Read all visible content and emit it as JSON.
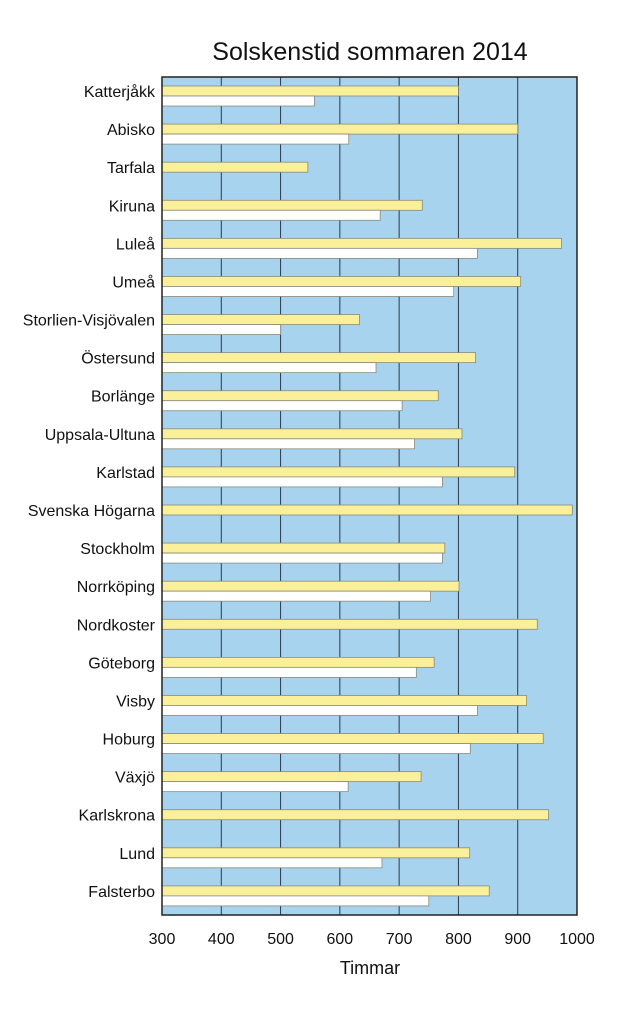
{
  "chart_data": {
    "type": "bar",
    "orientation": "horizontal",
    "title": "Solskenstid sommaren 2014",
    "xlabel": "Timmar",
    "ylabel": "",
    "xlim": [
      300,
      1000
    ],
    "xticks": [
      300,
      400,
      500,
      600,
      700,
      800,
      900,
      1000
    ],
    "grid": true,
    "legend": "none",
    "categories": [
      "Katterjåkk",
      "Abisko",
      "Tarfala",
      "Kiruna",
      "Luleå",
      "Umeå",
      "Storlien-Visjövalen",
      "Östersund",
      "Borlänge",
      "Uppsala-Ultuna",
      "Karlstad",
      "Svenska Högarna",
      "Stockholm",
      "Norrköping",
      "Nordkoster",
      "Göteborg",
      "Visby",
      "Hoburg",
      "Växjö",
      "Karlskrona",
      "Lund",
      "Falsterbo"
    ],
    "series": [
      {
        "color": "#fbf09a",
        "values": [
          800,
          900,
          546,
          739,
          974,
          905,
          633,
          829,
          766,
          806,
          895,
          992,
          777,
          801,
          933,
          759,
          915,
          943,
          737,
          952,
          819,
          852
        ]
      },
      {
        "color": "#ffffff",
        "values": [
          557,
          615,
          null,
          668,
          832,
          792,
          500,
          661,
          705,
          726,
          773,
          null,
          773,
          753,
          null,
          729,
          832,
          820,
          614,
          null,
          671,
          750
        ]
      }
    ],
    "colors": {
      "plot_background": "#a7d3ef",
      "gridline": "#2a3a4a",
      "bar_border": "#8a8a7a"
    }
  }
}
